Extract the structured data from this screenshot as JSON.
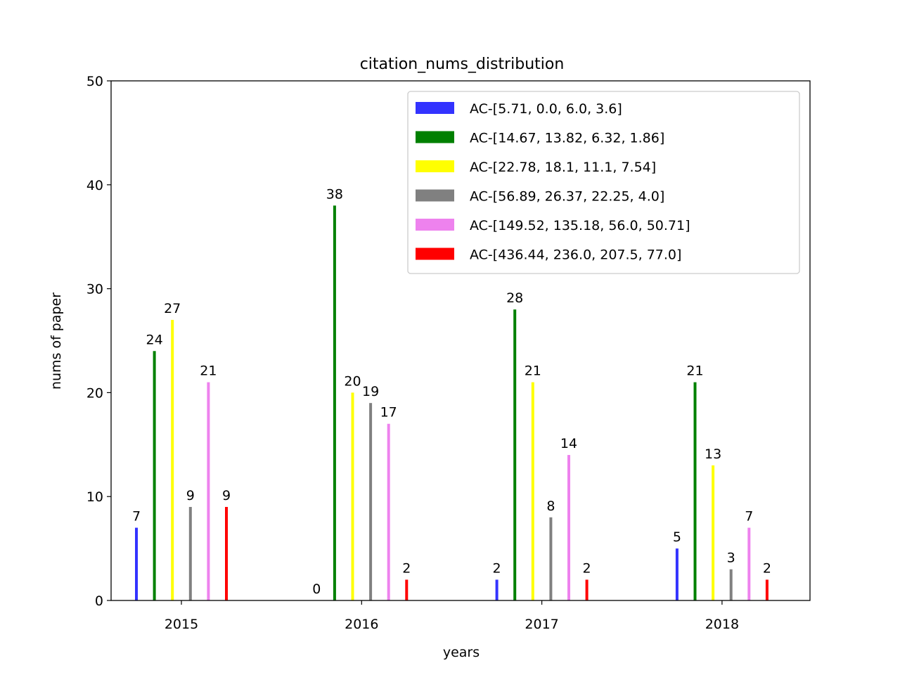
{
  "chart_data": {
    "type": "bar",
    "title": "citation_nums_distribution",
    "xlabel": "years",
    "ylabel": "nums of paper",
    "categories": [
      "2015",
      "2016",
      "2017",
      "2018"
    ],
    "ylim": [
      0,
      50
    ],
    "yticks": [
      0,
      10,
      20,
      30,
      40,
      50
    ],
    "grid": false,
    "legend_position": "top-right",
    "series": [
      {
        "name": "AC-[5.71, 0.0, 6.0, 3.6]",
        "color": "#3333ff",
        "values": [
          7,
          0,
          2,
          5
        ]
      },
      {
        "name": "AC-[14.67, 13.82, 6.32, 1.86]",
        "color": "#008000",
        "values": [
          24,
          38,
          28,
          21
        ]
      },
      {
        "name": "AC-[22.78, 18.1, 11.1, 7.54]",
        "color": "#ffff00",
        "values": [
          27,
          20,
          21,
          13
        ]
      },
      {
        "name": "AC-[56.89, 26.37, 22.25, 4.0]",
        "color": "#808080",
        "values": [
          9,
          19,
          8,
          3
        ]
      },
      {
        "name": "AC-[149.52, 135.18, 56.0, 50.71]",
        "color": "#ee82ee",
        "values": [
          21,
          17,
          14,
          7
        ]
      },
      {
        "name": "AC-[436.44, 236.0, 207.5, 77.0]",
        "color": "#ff0000",
        "values": [
          9,
          2,
          2,
          2
        ]
      }
    ]
  }
}
